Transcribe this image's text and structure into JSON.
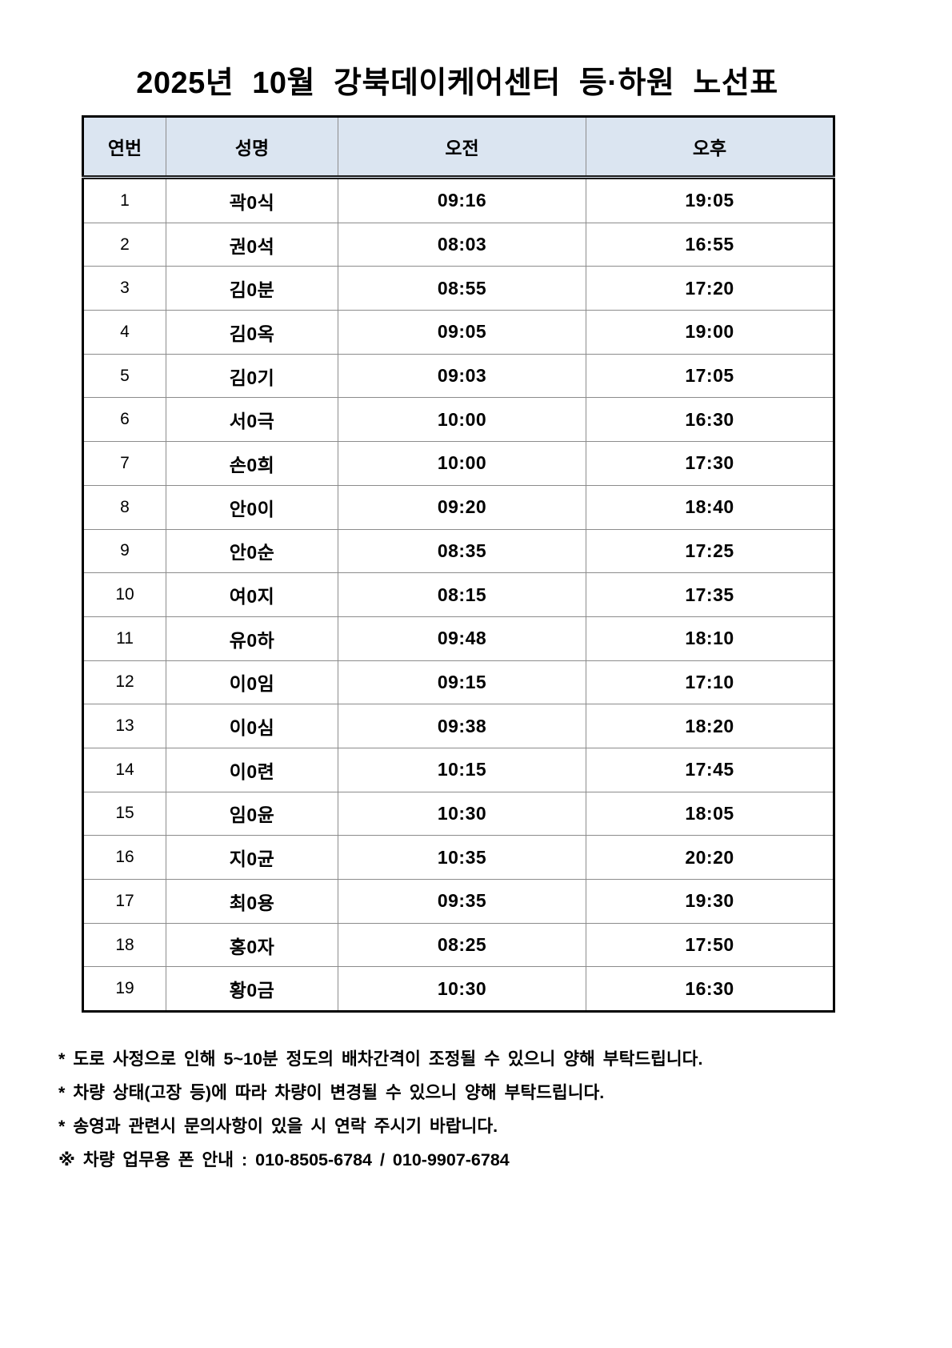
{
  "document": {
    "title": "2025년 10월 강북데이케어센터 등·하원 노선표"
  },
  "table": {
    "headers": [
      "연번",
      "성명",
      "오전",
      "오후"
    ],
    "rows": [
      {
        "no": "1",
        "name": "곽0식",
        "am": "09:16",
        "pm": "19:05"
      },
      {
        "no": "2",
        "name": "권0석",
        "am": "08:03",
        "pm": "16:55"
      },
      {
        "no": "3",
        "name": "김0분",
        "am": "08:55",
        "pm": "17:20"
      },
      {
        "no": "4",
        "name": "김0옥",
        "am": "09:05",
        "pm": "19:00"
      },
      {
        "no": "5",
        "name": "김0기",
        "am": "09:03",
        "pm": "17:05"
      },
      {
        "no": "6",
        "name": "서0극",
        "am": "10:00",
        "pm": "16:30"
      },
      {
        "no": "7",
        "name": "손0희",
        "am": "10:00",
        "pm": "17:30"
      },
      {
        "no": "8",
        "name": "안0이",
        "am": "09:20",
        "pm": "18:40"
      },
      {
        "no": "9",
        "name": "안0순",
        "am": "08:35",
        "pm": "17:25"
      },
      {
        "no": "10",
        "name": "여0지",
        "am": "08:15",
        "pm": "17:35"
      },
      {
        "no": "11",
        "name": "유0하",
        "am": "09:48",
        "pm": "18:10"
      },
      {
        "no": "12",
        "name": "이0임",
        "am": "09:15",
        "pm": "17:10"
      },
      {
        "no": "13",
        "name": "이0심",
        "am": "09:38",
        "pm": "18:20"
      },
      {
        "no": "14",
        "name": "이0련",
        "am": "10:15",
        "pm": "17:45"
      },
      {
        "no": "15",
        "name": "임0윤",
        "am": "10:30",
        "pm": "18:05"
      },
      {
        "no": "16",
        "name": "지0균",
        "am": "10:35",
        "pm": "20:20"
      },
      {
        "no": "17",
        "name": "최0용",
        "am": "09:35",
        "pm": "19:30"
      },
      {
        "no": "18",
        "name": "홍0자",
        "am": "08:25",
        "pm": "17:50"
      },
      {
        "no": "19",
        "name": "황0금",
        "am": "10:30",
        "pm": "16:30"
      }
    ]
  },
  "notes": [
    "* 도로 사정으로 인해 5~10분 정도의 배차간격이 조정될 수 있으니 양해 부탁드립니다.",
    "* 차량 상태(고장 등)에 따라 차량이 변경될 수 있으니 양해 부탁드립니다.",
    "* 송영과 관련시 문의사항이 있을 시 연락 주시기 바랍니다.",
    "※ 차량 업무용 폰 안내 : 010-8505-6784 / 010-9907-6784"
  ],
  "colors": {
    "header_bg": "#dbe5f1",
    "outer_border": "#000000",
    "inner_border": "#8c8c8c"
  }
}
